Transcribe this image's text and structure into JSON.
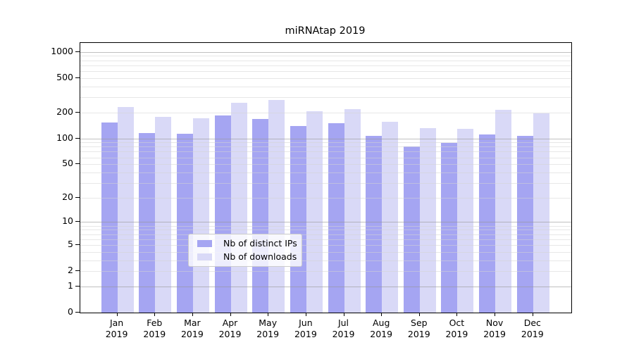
{
  "title": "miRNAtap 2019",
  "chart_data": {
    "type": "bar",
    "title": "miRNAtap 2019",
    "categories": [
      "Jan 2019",
      "Feb 2019",
      "Mar 2019",
      "Apr 2019",
      "May 2019",
      "Jun 2019",
      "Jul 2019",
      "Aug 2019",
      "Sep 2019",
      "Oct 2019",
      "Nov 2019",
      "Dec 2019"
    ],
    "series": [
      {
        "name": "Nb of distinct IPs",
        "color": "#a5a5f2",
        "values": [
          153,
          115,
          114,
          184,
          168,
          139,
          150,
          107,
          81,
          89,
          111,
          107
        ]
      },
      {
        "name": "Nb of downloads",
        "color": "#d9d9f7",
        "values": [
          231,
          177,
          172,
          258,
          278,
          206,
          218,
          156,
          132,
          129,
          214,
          195
        ]
      }
    ],
    "yticks": [
      0,
      1,
      2,
      5,
      10,
      20,
      50,
      100,
      200,
      500,
      1000
    ],
    "ylim": [
      0,
      1265
    ],
    "yscale": "log10(value+1)",
    "xlabel": "",
    "ylabel": "",
    "grid": "horizontal minor+major log gridlines",
    "legend_position": "inside lower-center"
  }
}
